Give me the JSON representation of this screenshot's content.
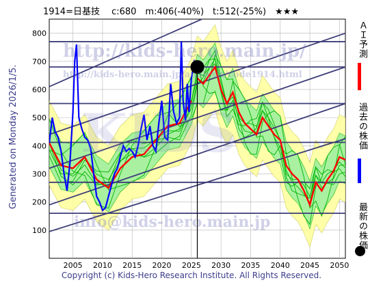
{
  "header": {
    "title": "1914=日基技　 c:680　m:406(-40%)　t:512(-25%)　★★★"
  },
  "side_label": "Generated on Monday 2026/1/5.",
  "footer": "Copyright (c) Kids-Hero Research Institute. All Rights Reserved.",
  "watermarks": {
    "url1": "http://kids-hero.main.jp/",
    "url2": "http://kids-hero.main.jp/analysis/code1914.html",
    "mail": "info@kids-hero.main.jp",
    "big": "KIDS"
  },
  "legend": {
    "ai": "ＡＩ予測",
    "past": "過去の株価",
    "latest": "最新の株価"
  },
  "colors": {
    "ai": "#ff0000",
    "past": "#0000ff",
    "green": "#00b400",
    "band_green": "#a0f0a0",
    "band_yellow": "#ffffa0",
    "trend": "#3c3c78",
    "grid": "#b4b4b4"
  },
  "chart_data": {
    "type": "line",
    "xlim": [
      2001,
      2051
    ],
    "ylim": [
      0,
      850
    ],
    "x_ticks": [
      2005,
      2010,
      2015,
      2020,
      2025,
      2030,
      2035,
      2040,
      2045,
      2050
    ],
    "y_ticks": [
      100,
      200,
      300,
      400,
      500,
      600,
      700,
      800
    ],
    "horizontal_levels": [
      770,
      680,
      550,
      412,
      270,
      160
    ],
    "current_point": {
      "x": 2026.0,
      "y": 680
    },
    "current_year_line": 2026.0,
    "trend_channels": [
      {
        "x": [
          2001,
          2051
        ],
        "y": [
          95,
          425
        ]
      },
      {
        "x": [
          2001,
          2051
        ],
        "y": [
          190,
          550
        ]
      },
      {
        "x": [
          2001,
          2051
        ],
        "y": [
          320,
          680
        ]
      },
      {
        "x": [
          2001,
          2051
        ],
        "y": [
          440,
          800
        ]
      },
      {
        "x": [
          2001,
          2030
        ],
        "y": [
          610,
          880
        ]
      }
    ],
    "series": [
      {
        "name": "過去の株価",
        "color": "#0000ff",
        "x": [
          2001.0,
          2001.5,
          2002.0,
          2002.5,
          2003.0,
          2003.5,
          2004.0,
          2004.5,
          2005.0,
          2005.3,
          2005.6,
          2006.0,
          2006.5,
          2007.0,
          2007.5,
          2008.0,
          2008.5,
          2009.0,
          2009.5,
          2010.0,
          2010.5,
          2011.0,
          2011.5,
          2012.0,
          2012.5,
          2013.0,
          2013.5,
          2014.0,
          2014.5,
          2015.0,
          2015.5,
          2016.0,
          2016.5,
          2017.0,
          2017.5,
          2018.0,
          2018.5,
          2019.0,
          2019.5,
          2020.0,
          2020.5,
          2021.0,
          2021.5,
          2022.0,
          2022.5,
          2023.0,
          2023.3,
          2023.6,
          2024.0,
          2024.3,
          2024.6,
          2025.0,
          2025.5,
          2026.0
        ],
        "y": [
          410,
          500,
          450,
          430,
          380,
          300,
          240,
          340,
          520,
          700,
          760,
          500,
          460,
          430,
          420,
          390,
          300,
          220,
          200,
          170,
          180,
          220,
          260,
          300,
          320,
          360,
          400,
          380,
          390,
          380,
          360,
          400,
          460,
          510,
          420,
          470,
          400,
          380,
          480,
          560,
          430,
          420,
          620,
          520,
          480,
          500,
          770,
          560,
          490,
          620,
          520,
          640,
          700,
          680
        ]
      },
      {
        "name": "ＡＩ予測",
        "color": "#ff0000",
        "x": [
          2001,
          2003,
          2005,
          2007,
          2009,
          2011,
          2013,
          2015,
          2017,
          2019,
          2021,
          2023,
          2025,
          2026,
          2027,
          2028,
          2029,
          2030,
          2031,
          2032,
          2033,
          2034,
          2035,
          2036,
          2037,
          2038,
          2039,
          2040,
          2041,
          2042,
          2043,
          2044,
          2045,
          2046,
          2047,
          2048,
          2049,
          2050,
          2051
        ],
        "y": [
          410,
          330,
          320,
          360,
          280,
          250,
          320,
          360,
          370,
          420,
          470,
          480,
          560,
          640,
          620,
          650,
          680,
          600,
          550,
          590,
          520,
          480,
          460,
          440,
          500,
          470,
          440,
          420,
          330,
          300,
          280,
          240,
          190,
          270,
          240,
          280,
          310,
          360,
          350
        ]
      }
    ]
  }
}
